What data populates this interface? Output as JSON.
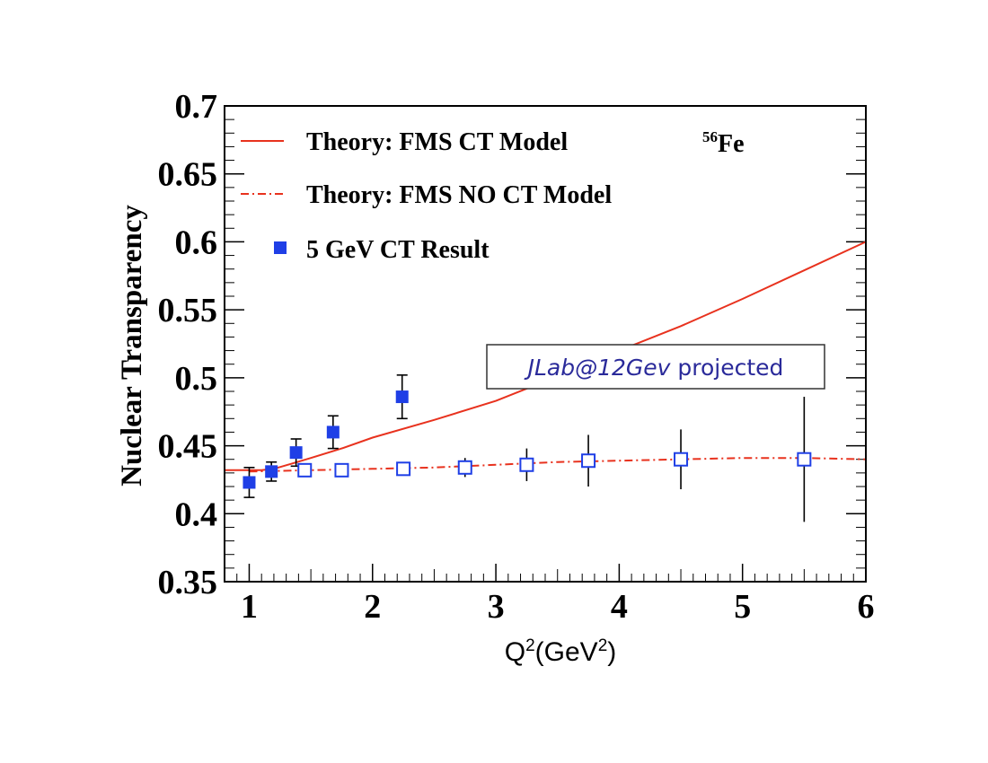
{
  "chart_data": {
    "type": "scatter",
    "ylabel": "Nuclear Transparency",
    "xlabel": "Q²(GeV²)",
    "xlim": [
      0.8,
      6
    ],
    "ylim": [
      0.35,
      0.7
    ],
    "x_ticks": [
      {
        "value": 1,
        "label": "1"
      },
      {
        "value": 2,
        "label": "2"
      },
      {
        "value": 3,
        "label": "3"
      },
      {
        "value": 4,
        "label": "4"
      },
      {
        "value": 5,
        "label": "5"
      },
      {
        "value": 6,
        "label": "6"
      }
    ],
    "y_ticks": [
      {
        "value": 0.35,
        "label": "0.35"
      },
      {
        "value": 0.4,
        "label": "0.4"
      },
      {
        "value": 0.45,
        "label": "0.45"
      },
      {
        "value": 0.5,
        "label": "0.5"
      },
      {
        "value": 0.55,
        "label": "0.55"
      },
      {
        "value": 0.6,
        "label": "0.6"
      },
      {
        "value": 0.65,
        "label": "0.65"
      },
      {
        "value": 0.7,
        "label": "0.7"
      }
    ],
    "isotope": {
      "mass": "56",
      "symbol": "Fe"
    },
    "legend": [
      {
        "label": "Theory: FMS CT Model",
        "style": "solid-line",
        "color": "#e8321e"
      },
      {
        "label": "Theory: FMS NO CT Model",
        "style": "dash-dot-line",
        "color": "#e8321e"
      },
      {
        "label": "5 GeV CT Result",
        "style": "filled-square",
        "color": "#1f3fe6"
      }
    ],
    "series": [
      {
        "name": "Theory: FMS CT Model",
        "kind": "line",
        "style": "solid",
        "color": "#e8321e",
        "x": [
          0.8,
          1.0,
          1.1,
          1.2,
          1.35,
          1.5,
          1.75,
          2.0,
          2.5,
          3.0,
          3.5,
          4.0,
          4.5,
          5.0,
          5.5,
          6.0
        ],
        "y": [
          0.432,
          0.432,
          0.432,
          0.433,
          0.437,
          0.441,
          0.448,
          0.456,
          0.469,
          0.483,
          0.501,
          0.52,
          0.538,
          0.558,
          0.579,
          0.6
        ]
      },
      {
        "name": "Theory: FMS NO CT Model",
        "kind": "line",
        "style": "dash-dot",
        "color": "#e8321e",
        "x": [
          1.0,
          1.5,
          2.0,
          2.5,
          3.0,
          3.5,
          4.0,
          4.5,
          5.0,
          5.5,
          6.0
        ],
        "y": [
          0.431,
          0.432,
          0.433,
          0.434,
          0.436,
          0.438,
          0.439,
          0.44,
          0.441,
          0.441,
          0.44
        ]
      },
      {
        "name": "5 GeV CT Result",
        "kind": "points",
        "marker": "filled-square",
        "color": "#1f3fe6",
        "points": [
          {
            "x": 1.0,
            "y": 0.423,
            "err": 0.011
          },
          {
            "x": 1.18,
            "y": 0.431,
            "err": 0.007
          },
          {
            "x": 1.38,
            "y": 0.445,
            "err": 0.01
          },
          {
            "x": 1.68,
            "y": 0.46,
            "err": 0.012
          },
          {
            "x": 2.24,
            "y": 0.486,
            "err": 0.016
          }
        ]
      },
      {
        "name": "JLab@12Gev projected",
        "kind": "points",
        "marker": "open-square",
        "color": "#1f3fe6",
        "points": [
          {
            "x": 1.45,
            "y": 0.432,
            "err": 0.003
          },
          {
            "x": 1.75,
            "y": 0.432,
            "err": 0.003
          },
          {
            "x": 2.25,
            "y": 0.433,
            "err": 0.004
          },
          {
            "x": 2.75,
            "y": 0.434,
            "err": 0.007
          },
          {
            "x": 3.25,
            "y": 0.436,
            "err": 0.012
          },
          {
            "x": 3.75,
            "y": 0.439,
            "err": 0.019
          },
          {
            "x": 4.5,
            "y": 0.44,
            "err": 0.022
          },
          {
            "x": 5.5,
            "y": 0.44,
            "err": 0.046
          }
        ]
      }
    ],
    "annotation": {
      "italic_text": "JLab@12Gev",
      "text": " projected",
      "position": "middle-right"
    }
  }
}
